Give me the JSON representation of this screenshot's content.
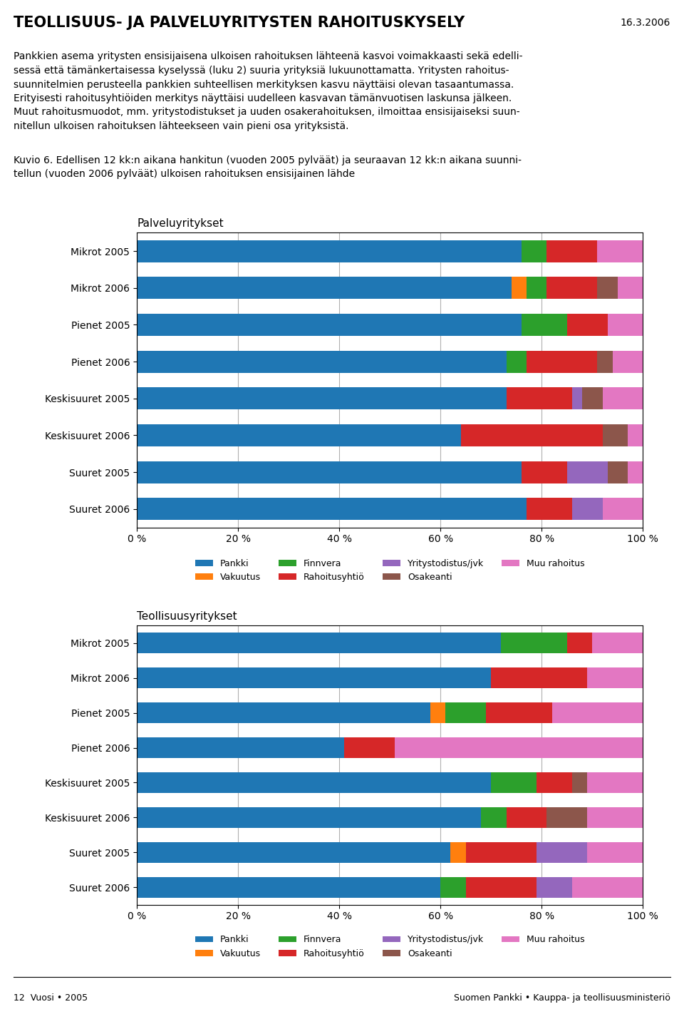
{
  "title": "TEOLLISUUS- JA PALVELUYRITYSTEN RAHOITUSKYSELY",
  "annotations": [
    "16.3.2006",
    "Pankkien asema yritysten ensisijaisena ulkoisen rahoituksen lähteenä kasvoi voimakkaasti sekä edelli-\nsessä että tämänkertaisessa kyselyssä (luku 2) suuria yrityksiä lukuunottamatta. Yritysten rahoitus-\nsuunnitelmien perusteella pankkien suhteellisen merkityksen kasvu näyttäisi olevan tasaantumassa.\nErityisesti rahoitusyhtiöiden merkitys näyttäisi uudelleen kasvavan tämänvuotisen laskunsa jälkeen.\nMuut rahoitusmuodot, mm. yritystodistukset ja uuden osakerahoituksen, ilmoittaa ensisijaiseksi suun-\nnitellun ulkoisen rahoituksen lähteekseen vain pieni osa yrityksistä.",
    "Kuvio 6. Edellisen 12 kk:n aikana hankitun (vuoden 2005 pylväät) ja seuraavan 12 kk:n aikana suunni-\ntellun (vuoden 2006 pylväät) ulkoisen rahoituksen ensisijainen lähde",
    "12  Vuosi • 2005",
    "Suomen Pankki • Kauppa- ja teollisuusministeriö"
  ],
  "chart_data": [
    {
      "type": "bar",
      "orientation": "horizontal",
      "stacked": true,
      "subtitle": "Palveluyritykset",
      "categories": [
        "Mikrot 2005",
        "Mikrot 2006",
        "Pienet 2005",
        "Pienet 2006",
        "Keskisuuret 2005",
        "Keskisuuret 2006",
        "Suuret 2005",
        "Suuret 2006"
      ],
      "series": [
        {
          "name": "Pankki",
          "values": [
            76,
            74,
            76,
            73,
            73,
            64,
            76,
            77
          ]
        },
        {
          "name": "Vakuutus",
          "values": [
            0,
            3,
            0,
            0,
            0,
            0,
            0,
            0
          ]
        },
        {
          "name": "Finnvera",
          "values": [
            5,
            4,
            9,
            4,
            0,
            0,
            0,
            0
          ]
        },
        {
          "name": "Rahoitusyhtiö",
          "values": [
            10,
            10,
            8,
            14,
            13,
            28,
            9,
            9
          ]
        },
        {
          "name": "Yritystodistus/jvk",
          "values": [
            0,
            0,
            0,
            0,
            2,
            0,
            8,
            6
          ]
        },
        {
          "name": "Osakeanti",
          "values": [
            0,
            4,
            0,
            3,
            4,
            5,
            4,
            0
          ]
        },
        {
          "name": "Muu rahoitus",
          "values": [
            9,
            5,
            7,
            6,
            8,
            3,
            3,
            8
          ]
        }
      ],
      "xlim": [
        0,
        100
      ],
      "xticks": [
        {
          "value": 0,
          "label": "0 %"
        },
        {
          "value": 20,
          "label": "20 %"
        },
        {
          "value": 40,
          "label": "40 %"
        },
        {
          "value": 60,
          "label": "60 %"
        },
        {
          "value": 80,
          "label": "80 %"
        },
        {
          "value": 100,
          "label": "100 %"
        }
      ],
      "grid": true,
      "legend": "lower center"
    },
    {
      "type": "bar",
      "orientation": "horizontal",
      "stacked": true,
      "subtitle": "Teollisuusyritykset",
      "categories": [
        "Mikrot 2005",
        "Mikrot 2006",
        "Pienet 2005",
        "Pienet 2006",
        "Keskisuuret 2005",
        "Keskisuuret 2006",
        "Suuret 2005",
        "Suuret 2006"
      ],
      "series": [
        {
          "name": "Pankki",
          "values": [
            72,
            70,
            58,
            41,
            70,
            68,
            62,
            60
          ]
        },
        {
          "name": "Vakuutus",
          "values": [
            0,
            0,
            3,
            0,
            0,
            0,
            3,
            0
          ]
        },
        {
          "name": "Finnvera",
          "values": [
            13,
            0,
            8,
            0,
            9,
            5,
            0,
            5
          ]
        },
        {
          "name": "Rahoitusyhtiö",
          "values": [
            5,
            19,
            13,
            10,
            7,
            8,
            14,
            14
          ]
        },
        {
          "name": "Yritystodistus/jvk",
          "values": [
            0,
            0,
            0,
            0,
            0,
            0,
            10,
            7
          ]
        },
        {
          "name": "Osakeanti",
          "values": [
            0,
            0,
            0,
            0,
            3,
            8,
            0,
            0
          ]
        },
        {
          "name": "Muu rahoitus",
          "values": [
            10,
            11,
            18,
            49,
            11,
            11,
            11,
            14
          ]
        }
      ],
      "xlim": [
        0,
        100
      ],
      "xticks": [
        {
          "value": 0,
          "label": "0 %"
        },
        {
          "value": 20,
          "label": "20 %"
        },
        {
          "value": 40,
          "label": "40 %"
        },
        {
          "value": 60,
          "label": "60 %"
        },
        {
          "value": 80,
          "label": "80 %"
        },
        {
          "value": 100,
          "label": "100 %"
        }
      ],
      "grid": true,
      "legend": "lower center"
    }
  ]
}
